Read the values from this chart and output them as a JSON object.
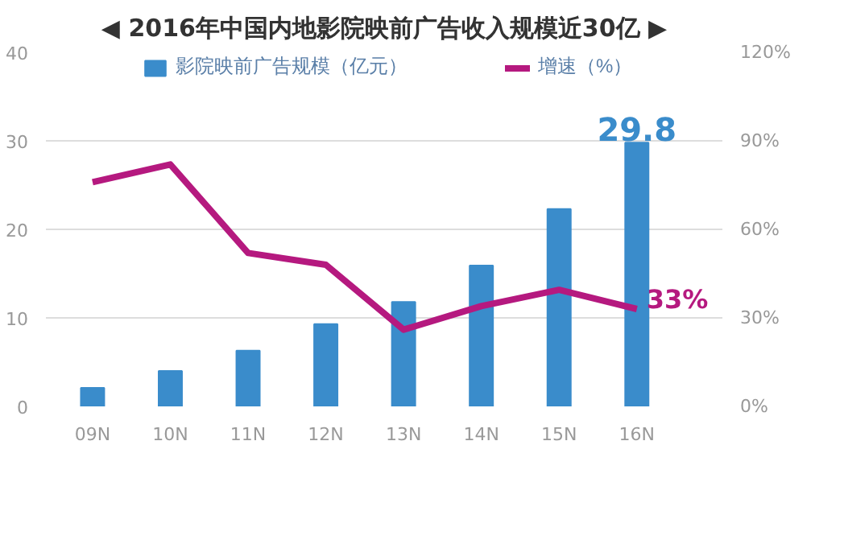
{
  "chart_data": {
    "type": "bar",
    "title": "◀ 2016年中国内地影院映前广告收入规模近30亿 ▶",
    "categories": [
      "09N",
      "10N",
      "11N",
      "12N",
      "13N",
      "14N",
      "15N",
      "16N"
    ],
    "series": [
      {
        "name": "影院映前广告规模（亿元）",
        "color": "#3a8ccb",
        "values": [
          2.1,
          4.0,
          6.3,
          9.3,
          11.8,
          15.9,
          22.3,
          29.8
        ],
        "value_labels": [
          null,
          null,
          null,
          null,
          null,
          null,
          null,
          "29.8"
        ]
      },
      {
        "name": "增速（%）",
        "color": "#b5197f",
        "type": "line",
        "axis": "y2",
        "values": [
          76,
          82,
          52,
          48,
          26,
          34,
          39.5,
          33
        ],
        "value_labels": [
          null,
          null,
          null,
          null,
          null,
          null,
          null,
          "33%"
        ]
      }
    ],
    "ylim": [
      0,
      40
    ],
    "yticks": [
      0,
      10,
      20,
      30,
      40
    ],
    "y2lim": [
      0,
      120
    ],
    "y2ticks": [
      {
        "value": 0,
        "label": "0%"
      },
      {
        "value": 30,
        "label": "30%"
      },
      {
        "value": 60,
        "label": "60%"
      },
      {
        "value": 90,
        "label": "90%"
      },
      {
        "value": 120,
        "label": "120%"
      }
    ],
    "grid": "y",
    "legend": "top",
    "marker": "none",
    "line_style": "solid"
  }
}
